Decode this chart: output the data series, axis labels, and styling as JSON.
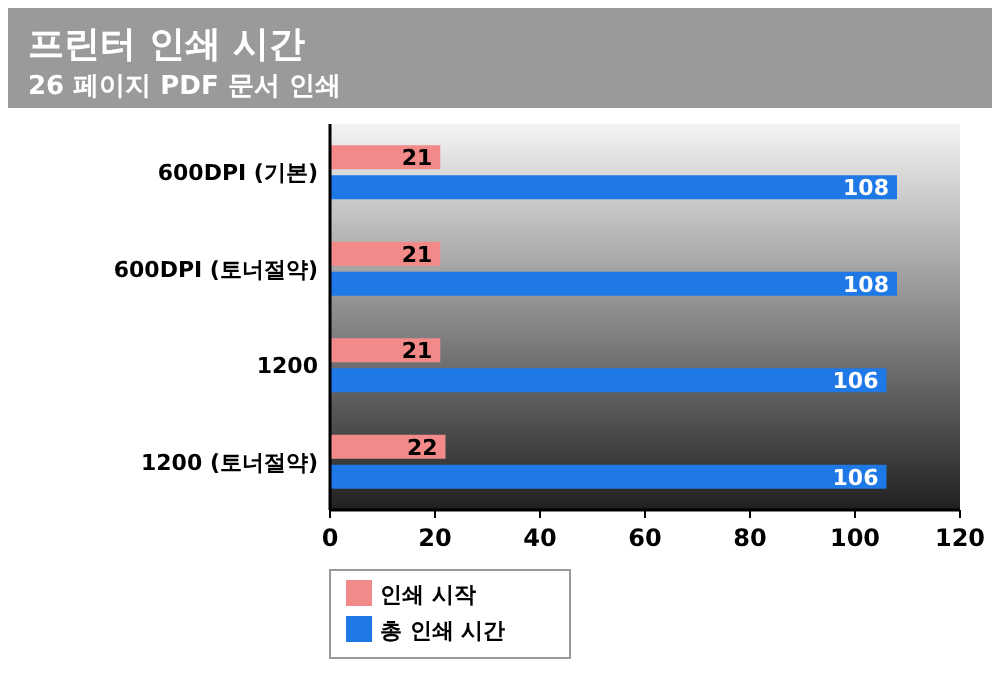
{
  "chart_data": {
    "type": "bar",
    "orientation": "horizontal",
    "title": "프린터 인쇄 시간",
    "subtitle": "26 페이지 PDF 문서 인쇄",
    "categories": [
      "600DPI (기본)",
      "600DPI (토너절약)",
      "1200",
      "1200 (토너절약)"
    ],
    "series": [
      {
        "name": "인쇄 시작",
        "color": "#f28a8a",
        "values": [
          21,
          21,
          21,
          22
        ]
      },
      {
        "name": "총 인쇄 시간",
        "color": "#1e78e6",
        "values": [
          108,
          108,
          106,
          106
        ]
      }
    ],
    "xlim": [
      0,
      120
    ],
    "xticks": [
      0,
      20,
      40,
      60,
      80,
      100,
      120
    ],
    "data_labels": true,
    "legend": "bottom",
    "grid": false
  }
}
